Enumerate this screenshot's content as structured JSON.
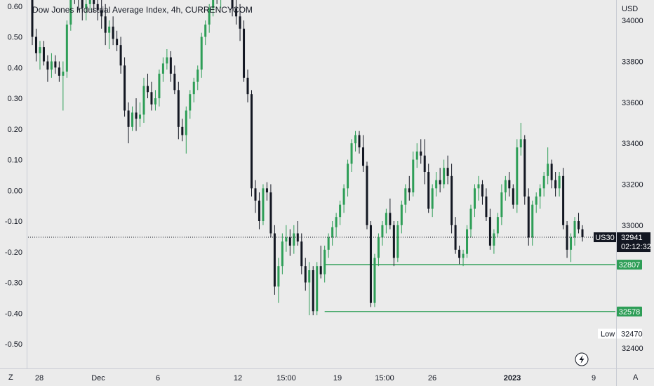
{
  "chart_data": {
    "type": "candlestick",
    "title": "Dow Jones Industrial Average Index, 4h, CURRENCYCOM",
    "currency": "USD",
    "left_axis": {
      "ticks": [
        "0.60",
        "0.50",
        "0.40",
        "0.30",
        "0.20",
        "0.10",
        "0.00",
        "-0.10",
        "-0.20",
        "-0.30",
        "-0.40",
        "-0.50"
      ],
      "ylim": [
        -0.58,
        0.62
      ]
    },
    "right_axis": {
      "ticks": [
        "34000",
        "33800",
        "33600",
        "33400",
        "33200",
        "33000",
        "32400"
      ],
      "ylim": [
        32300,
        34100
      ]
    },
    "x_ticks": [
      "28",
      "Dec",
      "6",
      "12",
      "15:00",
      "19",
      "15:00",
      "26",
      "2023",
      "9"
    ],
    "x_tick_bold": "2023",
    "scale_buttons": {
      "left": "Z",
      "right": "A"
    },
    "lightning_icon": "lightning-icon",
    "current_price": {
      "symbol": "US30",
      "price": "32941",
      "countdown": "02:12:32",
      "value": 32941
    },
    "levels": [
      {
        "label": "32807",
        "value": 32807,
        "x_start": 76
      },
      {
        "label": "32578",
        "value": 32578,
        "x_start": 76
      }
    ],
    "low": {
      "label": "Low",
      "value": "32470",
      "y_value": 32470
    },
    "colors": {
      "up": "#2e9e57",
      "down": "#131722",
      "level": "#2e9e57",
      "background": "#ebebeb",
      "axis_line": "#c9ccd4"
    },
    "candles": [
      [
        34120,
        34180,
        33880,
        33920
      ],
      [
        33920,
        33960,
        33800,
        33840
      ],
      [
        33840,
        33900,
        33760,
        33870
      ],
      [
        33870,
        33900,
        33780,
        33800
      ],
      [
        33800,
        33830,
        33700,
        33760
      ],
      [
        33760,
        33840,
        33720,
        33800
      ],
      [
        33800,
        33830,
        33740,
        33770
      ],
      [
        33770,
        33800,
        33700,
        33730
      ],
      [
        33730,
        33800,
        33560,
        33750
      ],
      [
        33750,
        34000,
        33720,
        33980
      ],
      [
        33980,
        34200,
        33950,
        34150
      ],
      [
        34150,
        34220,
        34080,
        34120
      ],
      [
        34120,
        34160,
        34050,
        34100
      ],
      [
        34100,
        34130,
        34000,
        34060
      ],
      [
        34060,
        34110,
        34000,
        34080
      ],
      [
        34080,
        34200,
        34050,
        34170
      ],
      [
        34170,
        34200,
        34040,
        34080
      ],
      [
        34080,
        34120,
        34000,
        34050
      ],
      [
        34050,
        34100,
        33960,
        34020
      ],
      [
        34020,
        34080,
        33880,
        33940
      ],
      [
        33940,
        34000,
        33860,
        33970
      ],
      [
        33970,
        34020,
        33880,
        33910
      ],
      [
        33910,
        33950,
        33850,
        33880
      ],
      [
        33880,
        33920,
        33740,
        33780
      ],
      [
        33780,
        33820,
        33530,
        33560
      ],
      [
        33560,
        33600,
        33400,
        33480
      ],
      [
        33480,
        33580,
        33460,
        33550
      ],
      [
        33550,
        33620,
        33460,
        33520
      ],
      [
        33520,
        33600,
        33480,
        33540
      ],
      [
        33540,
        33720,
        33500,
        33680
      ],
      [
        33680,
        33740,
        33620,
        33650
      ],
      [
        33650,
        33700,
        33560,
        33590
      ],
      [
        33590,
        33660,
        33560,
        33620
      ],
      [
        33620,
        33760,
        33580,
        33740
      ],
      [
        33740,
        33820,
        33700,
        33790
      ],
      [
        33790,
        33860,
        33760,
        33820
      ],
      [
        33820,
        33850,
        33700,
        33740
      ],
      [
        33740,
        33780,
        33640,
        33660
      ],
      [
        33660,
        33700,
        33420,
        33480
      ],
      [
        33480,
        33520,
        33410,
        33440
      ],
      [
        33440,
        33580,
        33350,
        33560
      ],
      [
        33560,
        33660,
        33520,
        33640
      ],
      [
        33640,
        33720,
        33600,
        33700
      ],
      [
        33700,
        33780,
        33660,
        33760
      ],
      [
        33760,
        33940,
        33720,
        33920
      ],
      [
        33920,
        34000,
        33880,
        33980
      ],
      [
        33980,
        34080,
        33940,
        34060
      ],
      [
        34060,
        34160,
        34020,
        34140
      ],
      [
        34140,
        34200,
        34080,
        34120
      ],
      [
        34120,
        34180,
        34060,
        34170
      ],
      [
        34170,
        34220,
        34110,
        34190
      ],
      [
        34190,
        34230,
        34100,
        34140
      ],
      [
        34140,
        34160,
        34020,
        34060
      ],
      [
        34060,
        34120,
        33980,
        34020
      ],
      [
        34020,
        34080,
        33900,
        33960
      ],
      [
        33960,
        34000,
        33700,
        33720
      ],
      [
        33720,
        33760,
        33600,
        33640
      ],
      [
        33640,
        33660,
        33140,
        33180
      ],
      [
        33180,
        33220,
        33060,
        33120
      ],
      [
        33120,
        33160,
        32980,
        33020
      ],
      [
        33020,
        33200,
        33000,
        33180
      ],
      [
        33180,
        33210,
        33120,
        33160
      ],
      [
        33160,
        33200,
        32940,
        32960
      ],
      [
        32960,
        33000,
        32660,
        32700
      ],
      [
        32700,
        32840,
        32620,
        32800
      ],
      [
        32800,
        32960,
        32760,
        32920
      ],
      [
        32920,
        33000,
        32870,
        32940
      ],
      [
        32940,
        32980,
        32850,
        32900
      ],
      [
        32900,
        33000,
        32860,
        32960
      ],
      [
        32960,
        33020,
        32900,
        32920
      ],
      [
        32920,
        32960,
        32760,
        32800
      ],
      [
        32800,
        32840,
        32680,
        32720
      ],
      [
        32720,
        32820,
        32560,
        32780
      ],
      [
        32780,
        32800,
        32560,
        32580
      ],
      [
        32580,
        32820,
        32560,
        32800
      ],
      [
        32800,
        32900,
        32740,
        32760
      ],
      [
        32760,
        32900,
        32720,
        32880
      ],
      [
        32880,
        32960,
        32840,
        32940
      ],
      [
        32940,
        33020,
        32900,
        32990
      ],
      [
        32990,
        33060,
        32940,
        33040
      ],
      [
        33040,
        33120,
        33000,
        33100
      ],
      [
        33100,
        33200,
        33060,
        33180
      ],
      [
        33180,
        33320,
        33140,
        33300
      ],
      [
        33300,
        33420,
        33260,
        33400
      ],
      [
        33400,
        33460,
        33360,
        33440
      ],
      [
        33440,
        33460,
        33350,
        33380
      ],
      [
        33380,
        33440,
        33260,
        33290
      ],
      [
        33290,
        33310,
        32980,
        33000
      ],
      [
        33000,
        33020,
        32600,
        32620
      ],
      [
        32620,
        32860,
        32600,
        32840
      ],
      [
        32840,
        32960,
        32800,
        32940
      ],
      [
        32940,
        33020,
        32900,
        33000
      ],
      [
        33000,
        33080,
        32960,
        33060
      ],
      [
        33060,
        33130,
        32980,
        33000
      ],
      [
        33000,
        33020,
        32800,
        32840
      ],
      [
        32840,
        33020,
        32820,
        33000
      ],
      [
        33000,
        33120,
        32960,
        33100
      ],
      [
        33100,
        33200,
        33060,
        33180
      ],
      [
        33180,
        33240,
        33120,
        33160
      ],
      [
        33160,
        33360,
        33140,
        33320
      ],
      [
        33320,
        33400,
        33280,
        33360
      ],
      [
        33360,
        33420,
        33300,
        33340
      ],
      [
        33340,
        33420,
        33200,
        33260
      ],
      [
        33260,
        33300,
        33060,
        33080
      ],
      [
        33080,
        33200,
        33040,
        33180
      ],
      [
        33180,
        33260,
        33140,
        33220
      ],
      [
        33220,
        33280,
        33160,
        33200
      ],
      [
        33200,
        33320,
        33180,
        33280
      ],
      [
        33280,
        33340,
        33200,
        33240
      ],
      [
        33240,
        33300,
        32960,
        33000
      ],
      [
        33000,
        33040,
        32860,
        32880
      ],
      [
        32880,
        32900,
        32810,
        32840
      ],
      [
        32840,
        32880,
        32800,
        32860
      ],
      [
        32860,
        33000,
        32840,
        32980
      ],
      [
        32980,
        33100,
        32940,
        33080
      ],
      [
        33080,
        33200,
        33040,
        33180
      ],
      [
        33180,
        33240,
        33120,
        33200
      ],
      [
        33200,
        33220,
        33100,
        33140
      ],
      [
        33140,
        33180,
        33020,
        33040
      ],
      [
        33040,
        33080,
        32880,
        32900
      ],
      [
        32900,
        32980,
        32860,
        32960
      ],
      [
        32960,
        33060,
        32940,
        33040
      ],
      [
        33040,
        33200,
        33000,
        33160
      ],
      [
        33160,
        33240,
        33120,
        33220
      ],
      [
        33220,
        33260,
        33140,
        33180
      ],
      [
        33180,
        33200,
        33080,
        33100
      ],
      [
        33100,
        33420,
        33060,
        33380
      ],
      [
        33380,
        33500,
        33340,
        33420
      ],
      [
        33420,
        33440,
        33100,
        33140
      ],
      [
        33140,
        33180,
        32900,
        32940
      ],
      [
        32940,
        33120,
        32900,
        33100
      ],
      [
        33100,
        33160,
        33060,
        33140
      ],
      [
        33140,
        33200,
        33080,
        33180
      ],
      [
        33180,
        33260,
        33140,
        33240
      ],
      [
        33240,
        33380,
        33200,
        33300
      ],
      [
        33300,
        33320,
        33180,
        33220
      ],
      [
        33220,
        33260,
        33140,
        33180
      ],
      [
        33180,
        33260,
        33140,
        33240
      ],
      [
        33240,
        33280,
        32980,
        33000
      ],
      [
        33000,
        33020,
        32840,
        32880
      ],
      [
        32880,
        32960,
        32820,
        32940
      ],
      [
        32940,
        33040,
        32900,
        33020
      ],
      [
        33020,
        33060,
        32960,
        32980
      ],
      [
        32980,
        33000,
        32920,
        32941
      ]
    ]
  }
}
